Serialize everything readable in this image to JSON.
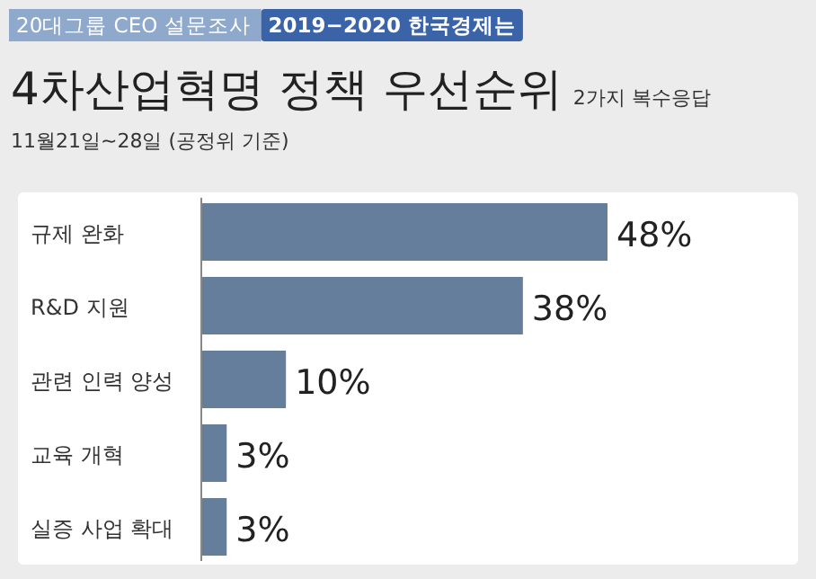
{
  "chart_data": {
    "type": "bar",
    "orientation": "horizontal",
    "title": "4차산업혁명 정책 우선순위",
    "subtitle": "2가지 복수응답",
    "annotations": [
      "20대그룹 CEO 설문조사",
      "2019−2020 한국경제는",
      "11월21일~28일 (공정위 기준)"
    ],
    "categories": [
      "규제 완화",
      "R&D 지원",
      "관련 인력 양성",
      "교육 개혁",
      "실증 사업 확대"
    ],
    "values": [
      48,
      38,
      10,
      3,
      3
    ],
    "value_labels": [
      "48%",
      "38%",
      "10%",
      "3%",
      "3%"
    ],
    "color": "#647e9c"
  }
}
